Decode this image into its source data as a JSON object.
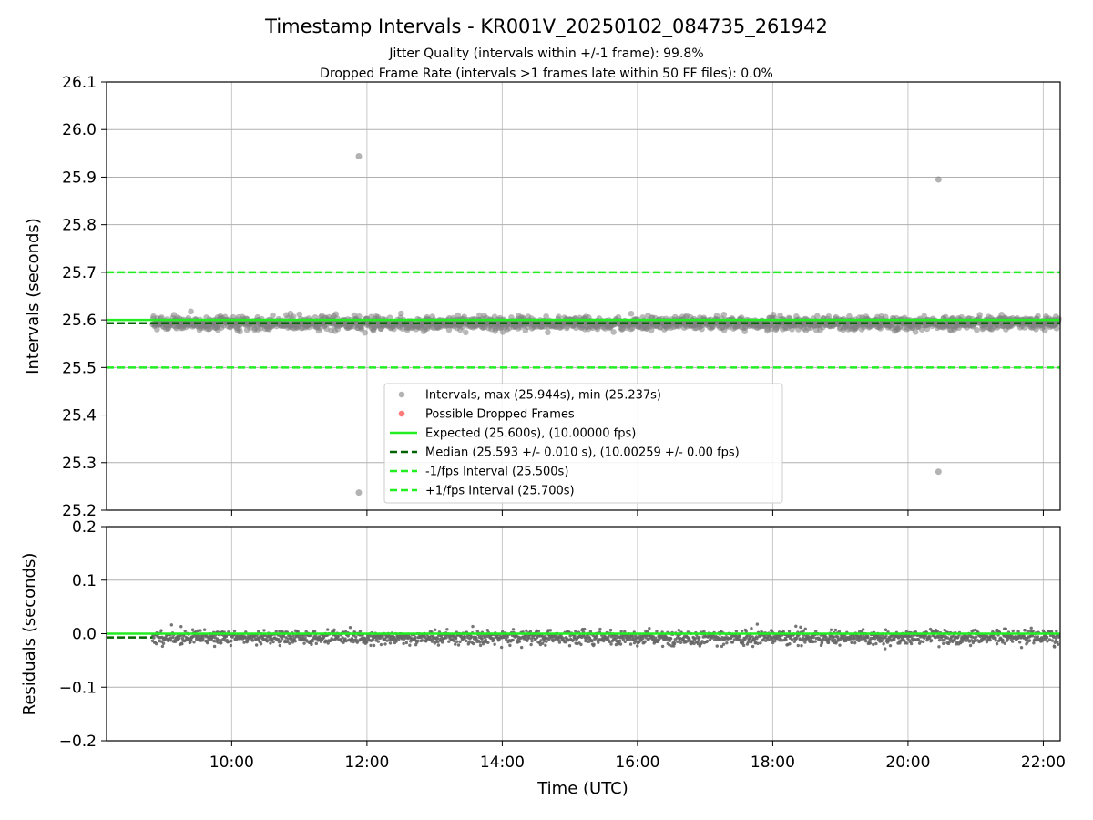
{
  "figure": {
    "title": "Timestamp Intervals - KR001V_20250102_084735_261942",
    "subtitle_lines": [
      "Jitter Quality (intervals within +/-1 frame): 99.8%",
      "Dropped Frame Rate (intervals >1 frames late within 50 FF files): 0.0%"
    ]
  },
  "colors": {
    "intervals": "#808080",
    "dropped": "#ff2020",
    "expected": "#22ee22",
    "median": "#006400",
    "bounds": "#22ee22",
    "grid": "#b0b0b0",
    "residuals": "#666666"
  },
  "chart_data": [
    {
      "type": "scatter",
      "panel": "top",
      "ylabel": "Intervals (seconds)",
      "ylim": [
        25.2,
        26.1
      ],
      "yticks": [
        "25.2",
        "25.3",
        "25.4",
        "25.5",
        "25.6",
        "25.7",
        "25.8",
        "25.9",
        "26.0",
        "26.1"
      ],
      "xlim_hours": [
        8.15,
        22.25
      ],
      "grid": true,
      "series": [
        {
          "name": "Intervals, max (25.944s), min (25.237s)",
          "kind": "scatter",
          "band": {
            "x_start_hours": 8.83,
            "x_end_hours": 22.23,
            "center": 25.593,
            "spread": 0.012,
            "count": 1900,
            "seed": 7
          },
          "outliers": [
            {
              "x_hours": 11.88,
              "y": 25.944
            },
            {
              "x_hours": 11.88,
              "y": 25.237
            },
            {
              "x_hours": 20.45,
              "y": 25.895
            },
            {
              "x_hours": 20.45,
              "y": 25.281
            }
          ]
        },
        {
          "name": "Possible Dropped Frames",
          "kind": "scatter",
          "points": []
        },
        {
          "name": "Expected (25.600s), (10.00000 fps)",
          "kind": "hline",
          "y": 25.6,
          "style": "solid"
        },
        {
          "name": "Median (25.593 +/- 0.010 s), (10.00259 +/- 0.00 fps)",
          "kind": "hline",
          "y": 25.593,
          "style": "dashed"
        },
        {
          "name": "-1/fps Interval (25.500s)",
          "kind": "hline",
          "y": 25.5,
          "style": "dashed"
        },
        {
          "name": "+1/fps Interval (25.700s)",
          "kind": "hline",
          "y": 25.7,
          "style": "dashed"
        }
      ],
      "legend": "lower-center"
    },
    {
      "type": "scatter",
      "panel": "bottom",
      "ylabel": "Residuals (seconds)",
      "xlabel": "Time (UTC)",
      "ylim": [
        -0.2,
        0.2
      ],
      "yticks": [
        "−0.2",
        "−0.1",
        "0.0",
        "0.1",
        "0.2"
      ],
      "yticks_values": [
        -0.2,
        -0.1,
        0.0,
        0.1,
        0.2
      ],
      "xlim_hours": [
        8.15,
        22.25
      ],
      "xticks": [
        "10:00",
        "12:00",
        "14:00",
        "16:00",
        "18:00",
        "20:00",
        "22:00"
      ],
      "xticks_hours": [
        10,
        12,
        14,
        16,
        18,
        20,
        22
      ],
      "grid": true,
      "series": [
        {
          "kind": "scatter",
          "band": {
            "center": 0.0,
            "spread": 0.012,
            "count": 1900,
            "seed": 11
          }
        },
        {
          "kind": "hline",
          "y": 0.0,
          "style": "solid"
        },
        {
          "kind": "hline",
          "y": -0.007,
          "style": "dashed"
        }
      ]
    }
  ]
}
